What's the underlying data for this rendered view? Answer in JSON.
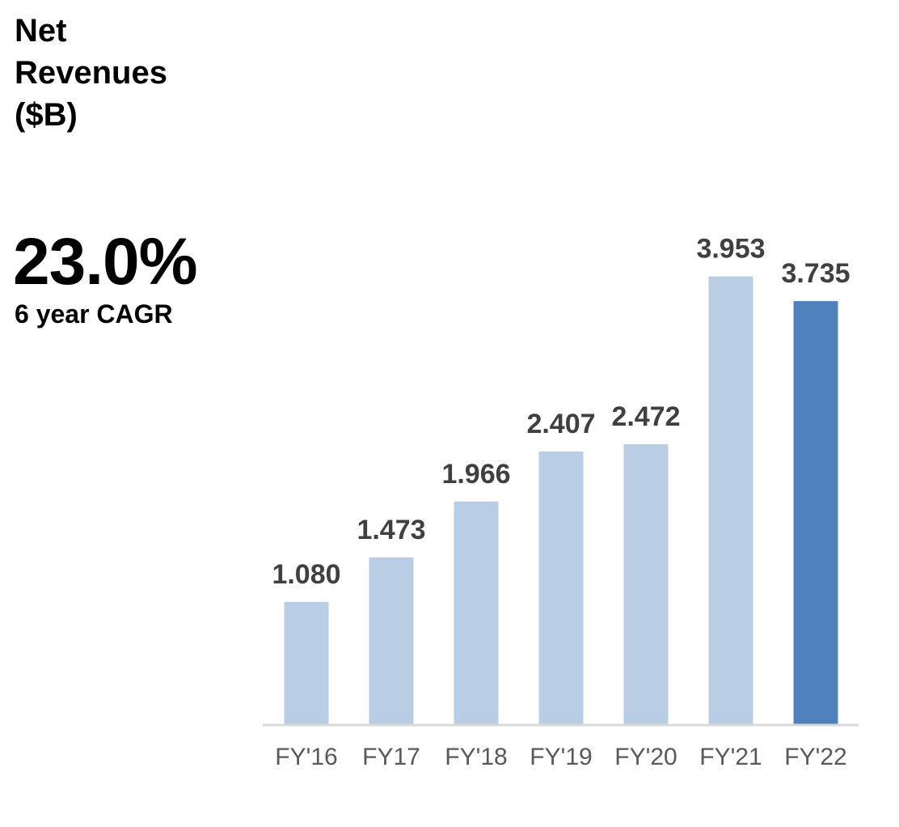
{
  "header": {
    "title_lines": [
      "Net",
      "Revenues",
      "($B)"
    ]
  },
  "cagr": {
    "value": "23.0%",
    "label": "6 year CAGR"
  },
  "colors": {
    "bar_default": "#b9cde4",
    "bar_highlight": "#4f81bd",
    "axis": "#d9d9d9"
  },
  "chart_data": {
    "type": "bar",
    "title": "Net Revenues ($B)",
    "xlabel": "",
    "ylabel": "",
    "categories": [
      "FY'16",
      "FY17",
      "FY'18",
      "FY'19",
      "FY'20",
      "FY'21",
      "FY'22"
    ],
    "values": [
      1.08,
      1.473,
      1.966,
      2.407,
      2.472,
      3.953,
      3.735
    ],
    "value_labels": [
      "1.080",
      "1.473",
      "1.966",
      "2.407",
      "2.472",
      "3.953",
      "3.735"
    ],
    "highlight_index": 6,
    "ylim": [
      0,
      4.5
    ],
    "grid": false
  }
}
